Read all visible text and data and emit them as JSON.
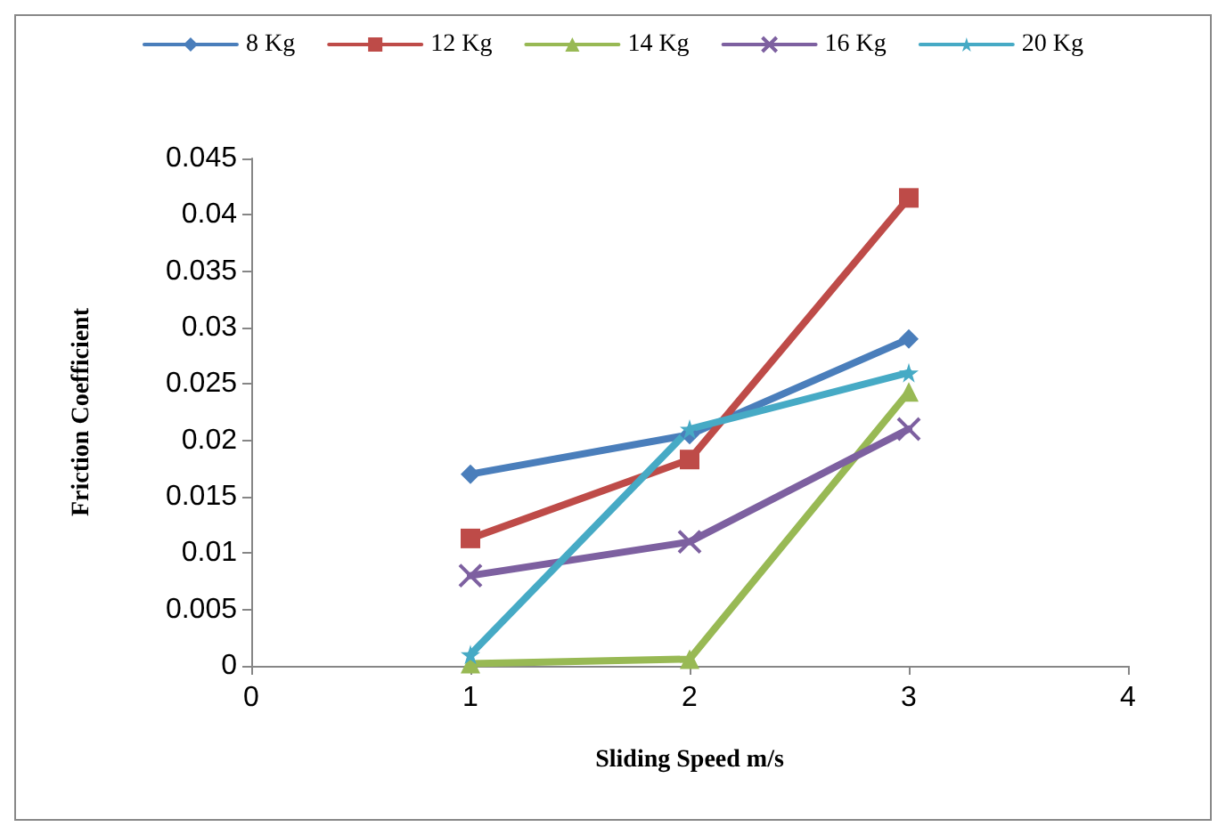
{
  "chart_data": {
    "type": "line",
    "xlabel": "Sliding Speed m/s",
    "ylabel": "Friction Coefficient",
    "x": [
      1,
      2,
      3
    ],
    "series": [
      {
        "name": "8 Kg",
        "color": "#4a7ebb",
        "marker": "diamond",
        "values": [
          0.017,
          0.0205,
          0.029
        ]
      },
      {
        "name": "12 Kg",
        "color": "#be4b48",
        "marker": "square",
        "values": [
          0.0113,
          0.0183,
          0.0415
        ]
      },
      {
        "name": "14 Kg",
        "color": "#98b954",
        "marker": "triangle",
        "values": [
          0.0002,
          0.0006,
          0.0243
        ]
      },
      {
        "name": "16 Kg",
        "color": "#7d60a0",
        "marker": "cross",
        "values": [
          0.008,
          0.011,
          0.021
        ]
      },
      {
        "name": "20 Kg",
        "color": "#46aac5",
        "marker": "star",
        "values": [
          0.001,
          0.021,
          0.026
        ]
      }
    ],
    "xlim": [
      0,
      4
    ],
    "xticks": [
      0,
      1,
      2,
      3,
      4
    ],
    "ylim": [
      0,
      0.045
    ],
    "yticks": [
      0,
      0.005,
      0.01,
      0.015,
      0.02,
      0.025,
      0.03,
      0.035,
      0.04,
      0.045
    ],
    "grid": false,
    "legend": "top",
    "line_style": "solid"
  }
}
